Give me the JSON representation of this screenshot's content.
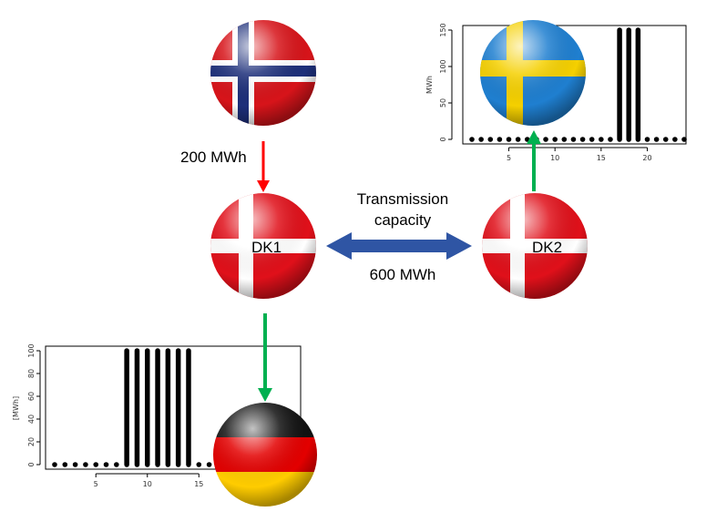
{
  "flows": {
    "norway_to_dk1": {
      "label": "200 MWh",
      "color": "#ff0000"
    },
    "transmission": {
      "title_line1": "Transmission",
      "title_line2": "capacity",
      "capacity": "600 MWh",
      "color": "#2f55a4"
    },
    "dk1_to_germany": {
      "color": "#00b050"
    },
    "dk2_to_sweden": {
      "color": "#00b050"
    }
  },
  "nodes": {
    "norway": {
      "icon": "norway-flag-icon"
    },
    "dk1": {
      "label": "DK1",
      "icon": "denmark-flag-icon"
    },
    "dk2": {
      "label": "DK2",
      "icon": "denmark-flag-icon"
    },
    "sweden": {
      "icon": "sweden-flag-icon"
    },
    "germany": {
      "icon": "germany-flag-icon"
    }
  },
  "chart_data": [
    {
      "type": "bar",
      "x": [
        1,
        2,
        3,
        4,
        5,
        6,
        7,
        8,
        9,
        10,
        11,
        12,
        13,
        14,
        15,
        16,
        17,
        18,
        19,
        20,
        21,
        22,
        23,
        24
      ],
      "values": [
        0,
        0,
        0,
        0,
        0,
        0,
        0,
        0,
        0,
        0,
        0,
        0,
        0,
        0,
        0,
        0,
        150,
        150,
        150,
        0,
        0,
        0,
        0,
        0
      ],
      "xlabel": "",
      "ylabel": "MWh",
      "xticks": [
        5,
        10,
        15,
        20
      ],
      "yticks": [
        0,
        50,
        100,
        150
      ],
      "ylim": [
        0,
        150
      ]
    },
    {
      "type": "bar",
      "x": [
        1,
        2,
        3,
        4,
        5,
        6,
        7,
        8,
        9,
        10,
        11,
        12,
        13,
        14,
        15,
        16,
        17,
        18,
        19,
        20,
        21,
        22,
        23,
        24
      ],
      "values": [
        0,
        0,
        0,
        0,
        0,
        0,
        0,
        100,
        100,
        100,
        100,
        100,
        100,
        100,
        0,
        0,
        0,
        0,
        0,
        0,
        0,
        0,
        0,
        0
      ],
      "xlabel": "",
      "ylabel": "[MWh]",
      "xticks": [
        5,
        10,
        15
      ],
      "yticks": [
        0,
        20,
        40,
        60,
        80,
        100
      ],
      "ylim": [
        0,
        100
      ]
    }
  ]
}
